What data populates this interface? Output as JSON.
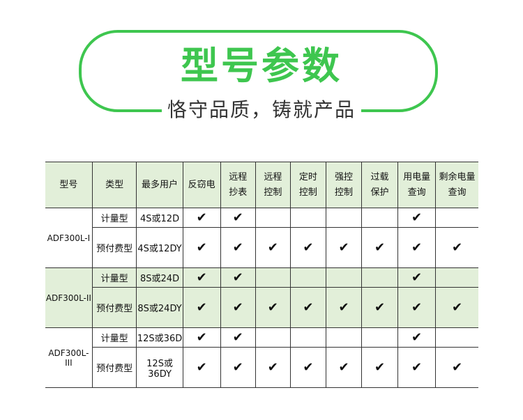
{
  "banner": {
    "title": "型号参数",
    "subtitle": "恪守品质，铸就产品",
    "accent_color": "#3ec64f"
  },
  "table": {
    "headers": [
      "型号",
      "类型",
      "最多用户",
      "反窃电",
      "远程\n抄表",
      "远程\n控制",
      "定时\n控制",
      "强控\n控制",
      "过载\n保护",
      "用电量\n查询",
      "剩余电量\n查询"
    ],
    "header_bg": "#e2efd9",
    "groups": [
      {
        "model": "ADF300L-I",
        "shaded": false,
        "rows": [
          {
            "type": "计量型",
            "users": "4S或12D",
            "checks": [
              true,
              true,
              false,
              false,
              false,
              false,
              true,
              false
            ]
          },
          {
            "type": "预付费型",
            "users": "4S或12DY",
            "checks": [
              true,
              true,
              true,
              true,
              true,
              true,
              true,
              true
            ]
          }
        ]
      },
      {
        "model": "ADF300L-II",
        "shaded": true,
        "rows": [
          {
            "type": "计量型",
            "users": "8S或24D",
            "checks": [
              true,
              true,
              false,
              false,
              false,
              false,
              true,
              false
            ]
          },
          {
            "type": "预付费型",
            "users": "8S或24DY",
            "checks": [
              true,
              true,
              true,
              true,
              true,
              true,
              true,
              true
            ]
          }
        ]
      },
      {
        "model": "ADF300L-III",
        "shaded": false,
        "rows": [
          {
            "type": "计量型",
            "users": "12S或36D",
            "checks": [
              true,
              true,
              false,
              false,
              false,
              false,
              true,
              false
            ]
          },
          {
            "type": "预付费型",
            "users": "12S或36DY",
            "checks": [
              true,
              true,
              true,
              true,
              true,
              true,
              true,
              true
            ]
          }
        ]
      }
    ],
    "check_glyph": "✔"
  }
}
